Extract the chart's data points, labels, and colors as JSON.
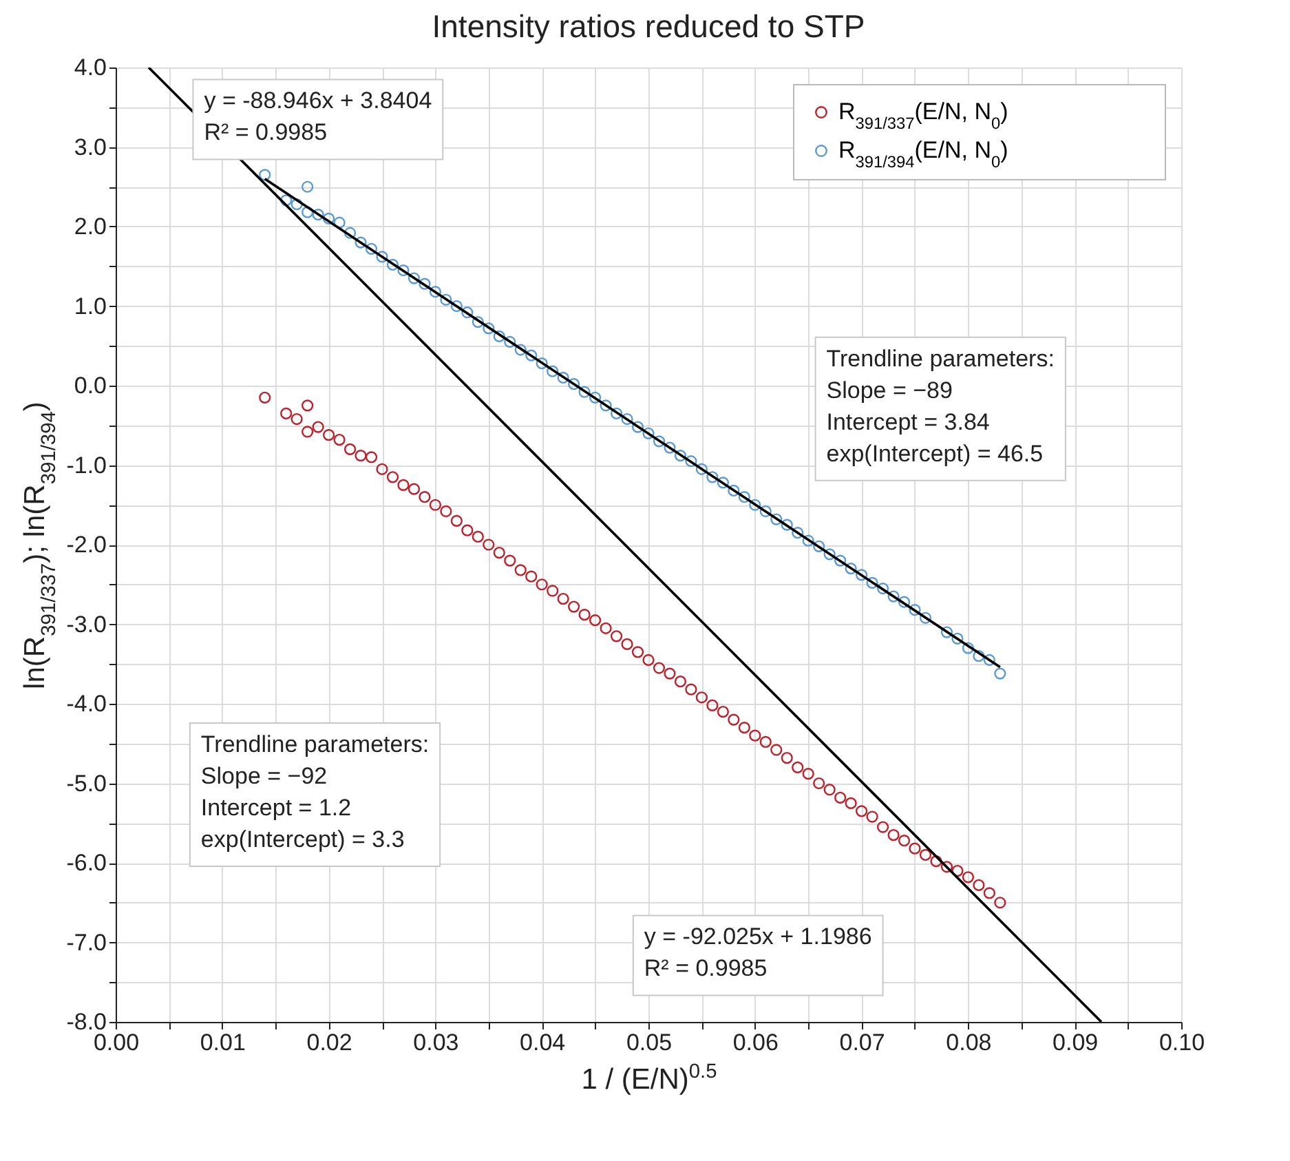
{
  "chart_data": {
    "type": "scatter",
    "title": "Intensity ratios reduced to STP",
    "xlabel": "1 / (E/N)$^{0.5}$",
    "ylabel": "ln(R$_{391/337}$); ln(R$_{391/394}$)",
    "xlim": [
      0,
      0.1
    ],
    "ylim": [
      -8,
      4
    ],
    "xticks": [
      {
        "value": 0,
        "label": "0.00"
      },
      {
        "value": 0.005,
        "label": null
      },
      {
        "value": 0.01,
        "label": "0.01"
      },
      {
        "value": 0.015,
        "label": null
      },
      {
        "value": 0.02,
        "label": "0.02"
      },
      {
        "value": 0.025,
        "label": null
      },
      {
        "value": 0.03,
        "label": "0.03"
      },
      {
        "value": 0.035,
        "label": null
      },
      {
        "value": 0.04,
        "label": "0.04"
      },
      {
        "value": 0.045,
        "label": null
      },
      {
        "value": 0.05,
        "label": "0.05"
      },
      {
        "value": 0.055,
        "label": null
      },
      {
        "value": 0.06,
        "label": "0.06"
      },
      {
        "value": 0.065,
        "label": null
      },
      {
        "value": 0.07,
        "label": "0.07"
      },
      {
        "value": 0.075,
        "label": null
      },
      {
        "value": 0.08,
        "label": "0.08"
      },
      {
        "value": 0.085,
        "label": null
      },
      {
        "value": 0.09,
        "label": "0.09"
      },
      {
        "value": 0.095,
        "label": null
      },
      {
        "value": 0.1,
        "label": "0.10"
      }
    ],
    "yticks": [
      {
        "value": -8,
        "label": "-8.0"
      },
      {
        "value": -7.5,
        "label": null
      },
      {
        "value": -7,
        "label": "-7.0"
      },
      {
        "value": -6.5,
        "label": null
      },
      {
        "value": -6,
        "label": "-6.0"
      },
      {
        "value": -5.5,
        "label": null
      },
      {
        "value": -5,
        "label": "-5.0"
      },
      {
        "value": -4.5,
        "label": null
      },
      {
        "value": -4,
        "label": "-4.0"
      },
      {
        "value": -3.5,
        "label": null
      },
      {
        "value": -3,
        "label": "-3.0"
      },
      {
        "value": -2.5,
        "label": null
      },
      {
        "value": -2,
        "label": "-2.0"
      },
      {
        "value": -1.5,
        "label": null
      },
      {
        "value": -1,
        "label": "-1.0"
      },
      {
        "value": -0.5,
        "label": null
      },
      {
        "value": 0,
        "label": "0.0"
      },
      {
        "value": 0.5,
        "label": null
      },
      {
        "value": 1,
        "label": "1.0"
      },
      {
        "value": 1.5,
        "label": null
      },
      {
        "value": 2,
        "label": "2.0"
      },
      {
        "value": 2.5,
        "label": null
      },
      {
        "value": 3,
        "label": "3.0"
      },
      {
        "value": 3.5,
        "label": null
      },
      {
        "value": 4,
        "label": "4.0"
      }
    ],
    "grid": true,
    "legend": "top right",
    "series": [
      {
        "name": "R$_{391/337}$(E/N, N$_{0}$)",
        "color": "#c0202a",
        "marker": "circle",
        "x": [
          0.014,
          0.016,
          0.017,
          0.018,
          0.018,
          0.019,
          0.02,
          0.021,
          0.022,
          0.023,
          0.024,
          0.025,
          0.026,
          0.027,
          0.028,
          0.029,
          0.03,
          0.031,
          0.032,
          0.033,
          0.034,
          0.035,
          0.036,
          0.037,
          0.038,
          0.039,
          0.04,
          0.041,
          0.042,
          0.043,
          0.044,
          0.045,
          0.046,
          0.047,
          0.048,
          0.049,
          0.05,
          0.051,
          0.052,
          0.053,
          0.054,
          0.055,
          0.056,
          0.057,
          0.058,
          0.059,
          0.06,
          0.061,
          0.062,
          0.063,
          0.064,
          0.065,
          0.066,
          0.067,
          0.068,
          0.069,
          0.07,
          0.071,
          0.072,
          0.073,
          0.074,
          0.075,
          0.076,
          0.077,
          0.078,
          0.079,
          0.08,
          0.081,
          0.082,
          0.083
        ],
        "values": [
          -0.15,
          -0.35,
          -0.42,
          -0.25,
          -0.58,
          -0.52,
          -0.62,
          -0.68,
          -0.8,
          -0.88,
          -0.9,
          -1.05,
          -1.15,
          -1.25,
          -1.3,
          -1.4,
          -1.5,
          -1.58,
          -1.7,
          -1.82,
          -1.9,
          -2.0,
          -2.1,
          -2.2,
          -2.32,
          -2.4,
          -2.5,
          -2.58,
          -2.68,
          -2.78,
          -2.88,
          -2.95,
          -3.05,
          -3.15,
          -3.25,
          -3.35,
          -3.45,
          -3.55,
          -3.62,
          -3.72,
          -3.82,
          -3.92,
          -4.02,
          -4.1,
          -4.2,
          -4.3,
          -4.4,
          -4.48,
          -4.58,
          -4.68,
          -4.8,
          -4.88,
          -5.0,
          -5.08,
          -5.18,
          -5.25,
          -5.35,
          -5.42,
          -5.55,
          -5.65,
          -5.72,
          -5.82,
          -5.9,
          -5.98,
          -6.05,
          -6.1,
          -6.18,
          -6.28,
          -6.38,
          -6.5
        ]
      },
      {
        "name": "R$_{391/394}$(E/N, N$_{0}$)",
        "color": "#5b9bd5",
        "marker": "circle",
        "x": [
          0.014,
          0.016,
          0.017,
          0.018,
          0.018,
          0.019,
          0.02,
          0.021,
          0.022,
          0.023,
          0.024,
          0.025,
          0.026,
          0.027,
          0.028,
          0.029,
          0.03,
          0.031,
          0.032,
          0.033,
          0.034,
          0.035,
          0.036,
          0.037,
          0.038,
          0.039,
          0.04,
          0.041,
          0.042,
          0.043,
          0.044,
          0.045,
          0.046,
          0.047,
          0.048,
          0.049,
          0.05,
          0.051,
          0.052,
          0.053,
          0.054,
          0.055,
          0.056,
          0.057,
          0.058,
          0.059,
          0.06,
          0.061,
          0.062,
          0.063,
          0.064,
          0.065,
          0.066,
          0.067,
          0.068,
          0.069,
          0.07,
          0.071,
          0.072,
          0.073,
          0.074,
          0.075,
          0.076,
          0.078,
          0.079,
          0.08,
          0.081,
          0.082,
          0.083
        ],
        "values": [
          2.65,
          2.33,
          2.28,
          2.5,
          2.18,
          2.15,
          2.1,
          2.05,
          1.92,
          1.8,
          1.72,
          1.62,
          1.52,
          1.45,
          1.35,
          1.28,
          1.18,
          1.08,
          1.0,
          0.92,
          0.8,
          0.72,
          0.62,
          0.55,
          0.45,
          0.38,
          0.28,
          0.18,
          0.1,
          0.02,
          -0.08,
          -0.15,
          -0.25,
          -0.35,
          -0.42,
          -0.52,
          -0.6,
          -0.7,
          -0.78,
          -0.88,
          -0.95,
          -1.05,
          -1.15,
          -1.22,
          -1.32,
          -1.4,
          -1.5,
          -1.58,
          -1.68,
          -1.75,
          -1.85,
          -1.95,
          -2.02,
          -2.12,
          -2.2,
          -2.3,
          -2.38,
          -2.48,
          -2.55,
          -2.65,
          -2.72,
          -2.82,
          -2.92,
          -3.1,
          -3.18,
          -3.3,
          -3.4,
          -3.45,
          -3.62
        ]
      },
      {
        "type": "line",
        "color": "#000000",
        "marker": "none",
        "x": [
          0.0031,
          0.0925
        ],
        "values": [
          4,
          -8
        ]
      },
      {
        "type": "line",
        "color": "#000000",
        "marker": "none",
        "x": [
          0.014,
          0.083
        ],
        "values": [
          2.6,
          -3.54
        ]
      }
    ],
    "annotations": [
      "y = -88.946x + 3.8404\n       R² = 0.9985",
      "Trendline parameters:\nSlope = −89\nIntercept = 3.84\nexp(Intercept) = 46.5",
      "Trendline parameters:\nSlope = −92\nIntercept = 1.2\nexp(Intercept) = 3.3",
      "y = -92.025x + 1.1986\n       R² = 0.9985"
    ]
  }
}
